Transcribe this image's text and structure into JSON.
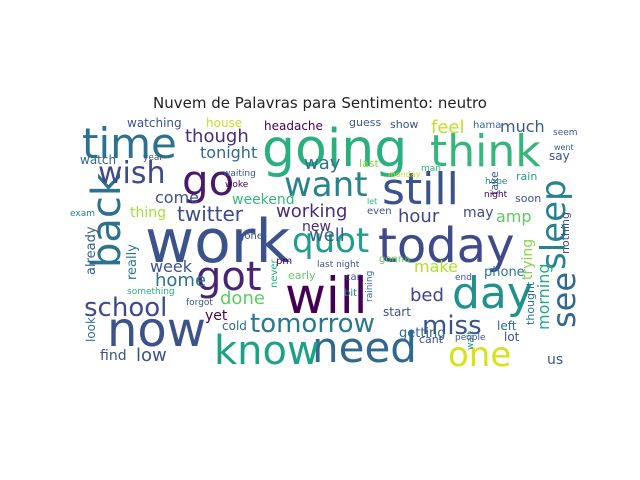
{
  "title": "Nuvem de Palavras para Sentimento: neutro",
  "words": [
    {
      "text": "work",
      "color": "#3b528b"
    },
    {
      "text": "today",
      "color": "#3e4a89"
    },
    {
      "text": "going",
      "color": "#2ab07f"
    },
    {
      "text": "will",
      "color": "#440154"
    },
    {
      "text": "now",
      "color": "#3b528b"
    },
    {
      "text": "day",
      "color": "#21918c"
    },
    {
      "text": "got",
      "color": "#482475"
    },
    {
      "text": "need",
      "color": "#31688e"
    },
    {
      "text": "know",
      "color": "#1fa187"
    },
    {
      "text": "time",
      "color": "#2c728e"
    },
    {
      "text": "think",
      "color": "#35b779"
    },
    {
      "text": "still",
      "color": "#3b528b"
    },
    {
      "text": "go",
      "color": "#481a6c"
    },
    {
      "text": "back",
      "color": "#2c728e"
    },
    {
      "text": "want",
      "color": "#26828e"
    },
    {
      "text": "quot",
      "color": "#1f9e89"
    },
    {
      "text": "sleep",
      "color": "#26828e"
    },
    {
      "text": "one",
      "color": "#d8e219"
    },
    {
      "text": "see",
      "color": "#31688e"
    },
    {
      "text": "wish",
      "color": "#3e4a89"
    },
    {
      "text": "school",
      "color": "#3e4a89"
    },
    {
      "text": "tomorrow",
      "color": "#2a788e"
    },
    {
      "text": "miss",
      "color": "#3b528b"
    },
    {
      "text": "though",
      "color": "#472d7b"
    },
    {
      "text": "much",
      "color": "#38588c"
    },
    {
      "text": "feel",
      "color": "#c2df23"
    },
    {
      "text": "way",
      "color": "#2c728e"
    },
    {
      "text": "twitter",
      "color": "#3e4a89"
    },
    {
      "text": "working",
      "color": "#472d7b"
    },
    {
      "text": "home",
      "color": "#2c728e"
    },
    {
      "text": "week",
      "color": "#3b528b"
    },
    {
      "text": "well",
      "color": "#34608d"
    },
    {
      "text": "done",
      "color": "#5ec962"
    },
    {
      "text": "hour",
      "color": "#414487"
    },
    {
      "text": "bed",
      "color": "#414487"
    },
    {
      "text": "make",
      "color": "#b5de2b"
    },
    {
      "text": "come",
      "color": "#3b528b"
    },
    {
      "text": "thing",
      "color": "#a5db36"
    },
    {
      "text": "tonight",
      "color": "#31688e"
    },
    {
      "text": "weekend",
      "color": "#35b779"
    },
    {
      "text": "amp",
      "color": "#5ec962"
    },
    {
      "text": "morning",
      "color": "#22a884"
    },
    {
      "text": "new",
      "color": "#482878"
    },
    {
      "text": "low",
      "color": "#3b528b"
    },
    {
      "text": "find",
      "color": "#3b528b"
    },
    {
      "text": "yet",
      "color": "#440154"
    },
    {
      "text": "really",
      "color": "#2a788e"
    },
    {
      "text": "already",
      "color": "#34608d"
    },
    {
      "text": "getting",
      "color": "#31688e"
    },
    {
      "text": "trying",
      "color": "#86d549"
    },
    {
      "text": "phone",
      "color": "#2a788e"
    },
    {
      "text": "may",
      "color": "#3e4a89"
    },
    {
      "text": "watch",
      "color": "#31688e"
    },
    {
      "text": "watching",
      "color": "#3b528b"
    },
    {
      "text": "house",
      "color": "#c2df23"
    },
    {
      "text": "headache",
      "color": "#440154"
    },
    {
      "text": "guess",
      "color": "#3b528b"
    },
    {
      "text": "show",
      "color": "#3b528b"
    },
    {
      "text": "hama",
      "color": "#31688e"
    },
    {
      "text": "seem",
      "color": "#38588c"
    },
    {
      "text": "last",
      "color": "#86d549"
    },
    {
      "text": "man",
      "color": "#2ab07f"
    },
    {
      "text": "monday",
      "color": "#c2df23"
    },
    {
      "text": "rain",
      "color": "#1fa187"
    },
    {
      "text": "soon",
      "color": "#3b528b"
    },
    {
      "text": "take",
      "color": "#3b528b"
    },
    {
      "text": "hope",
      "color": "#26828e"
    },
    {
      "text": "night",
      "color": "#440154"
    },
    {
      "text": "went",
      "color": "#31688e"
    },
    {
      "text": "say",
      "color": "#3b528b"
    },
    {
      "text": "year",
      "color": "#3b528b"
    },
    {
      "text": "woke",
      "color": "#440154"
    },
    {
      "text": "waiting",
      "color": "#3b528b"
    },
    {
      "text": "exam",
      "color": "#26828e"
    },
    {
      "text": "even",
      "color": "#3b528b"
    },
    {
      "text": "let",
      "color": "#2ab07f"
    },
    {
      "text": "nothing",
      "color": "#3b528b"
    },
    {
      "text": "gone",
      "color": "#3b528b"
    },
    {
      "text": "pm",
      "color": "#440154"
    },
    {
      "text": "never",
      "color": "#2ab07f"
    },
    {
      "text": "last night",
      "color": "#3b528b"
    },
    {
      "text": "early",
      "color": "#5ec962"
    },
    {
      "text": "car",
      "color": "#3b528b"
    },
    {
      "text": "gonna",
      "color": "#5ec962"
    },
    {
      "text": "raining",
      "color": "#31688e"
    },
    {
      "text": "something",
      "color": "#2ab07f"
    },
    {
      "text": "bit",
      "color": "#26828e"
    },
    {
      "text": "end",
      "color": "#3b528b"
    },
    {
      "text": "start",
      "color": "#3b528b"
    },
    {
      "text": "people",
      "color": "#3b528b"
    },
    {
      "text": "forgot",
      "color": "#3b528b"
    },
    {
      "text": "cold",
      "color": "#31688e"
    },
    {
      "text": "look",
      "color": "#2c728e"
    },
    {
      "text": "cant",
      "color": "#3b528b"
    },
    {
      "text": "lot",
      "color": "#3b528b"
    },
    {
      "text": "left",
      "color": "#31688e"
    },
    {
      "text": "thought",
      "color": "#2c728e"
    },
    {
      "text": "wait",
      "color": "#26828e"
    },
    {
      "text": "us",
      "color": "#3b528b"
    }
  ]
}
